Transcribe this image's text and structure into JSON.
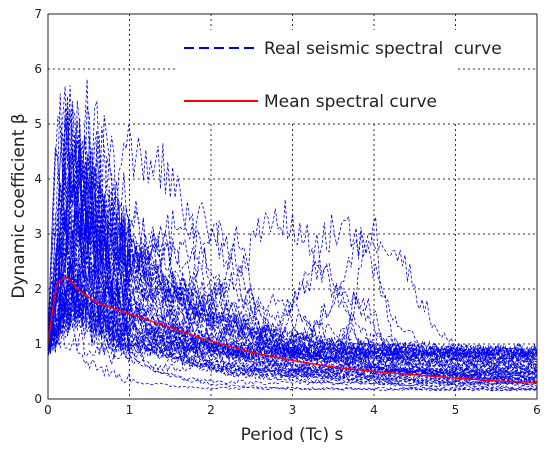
{
  "chart_data": {
    "type": "line",
    "xlabel": "Period (Tc)  s",
    "ylabel": "Dynamic coefficient β",
    "xlim": [
      0,
      6
    ],
    "ylim": [
      0,
      7
    ],
    "x_ticks": [
      "0",
      "1",
      "2",
      "3",
      "4",
      "5",
      "6"
    ],
    "y_ticks": [
      "0",
      "1",
      "2",
      "3",
      "4",
      "5",
      "6",
      "7"
    ],
    "grid": true,
    "legend_position": "top-right",
    "series": [
      {
        "name": "Real seismic spectral  curve",
        "style": "dashed",
        "color": "#0000ee",
        "note_count": 60
      },
      {
        "name": "Mean spectral curve",
        "style": "solid",
        "color": "#ff0000",
        "x": [
          0,
          0.05,
          0.1,
          0.15,
          0.2,
          0.25,
          0.3,
          0.4,
          0.5,
          0.6,
          0.8,
          1.0,
          1.2,
          1.5,
          1.8,
          2.0,
          2.5,
          3.0,
          3.5,
          4.0,
          4.5,
          5.0,
          5.5,
          6.0
        ],
        "y": [
          1.0,
          1.55,
          2.05,
          2.15,
          2.2,
          2.2,
          2.1,
          1.95,
          1.85,
          1.75,
          1.65,
          1.55,
          1.45,
          1.3,
          1.15,
          1.05,
          0.85,
          0.7,
          0.58,
          0.5,
          0.44,
          0.38,
          0.33,
          0.3
        ]
      }
    ]
  }
}
